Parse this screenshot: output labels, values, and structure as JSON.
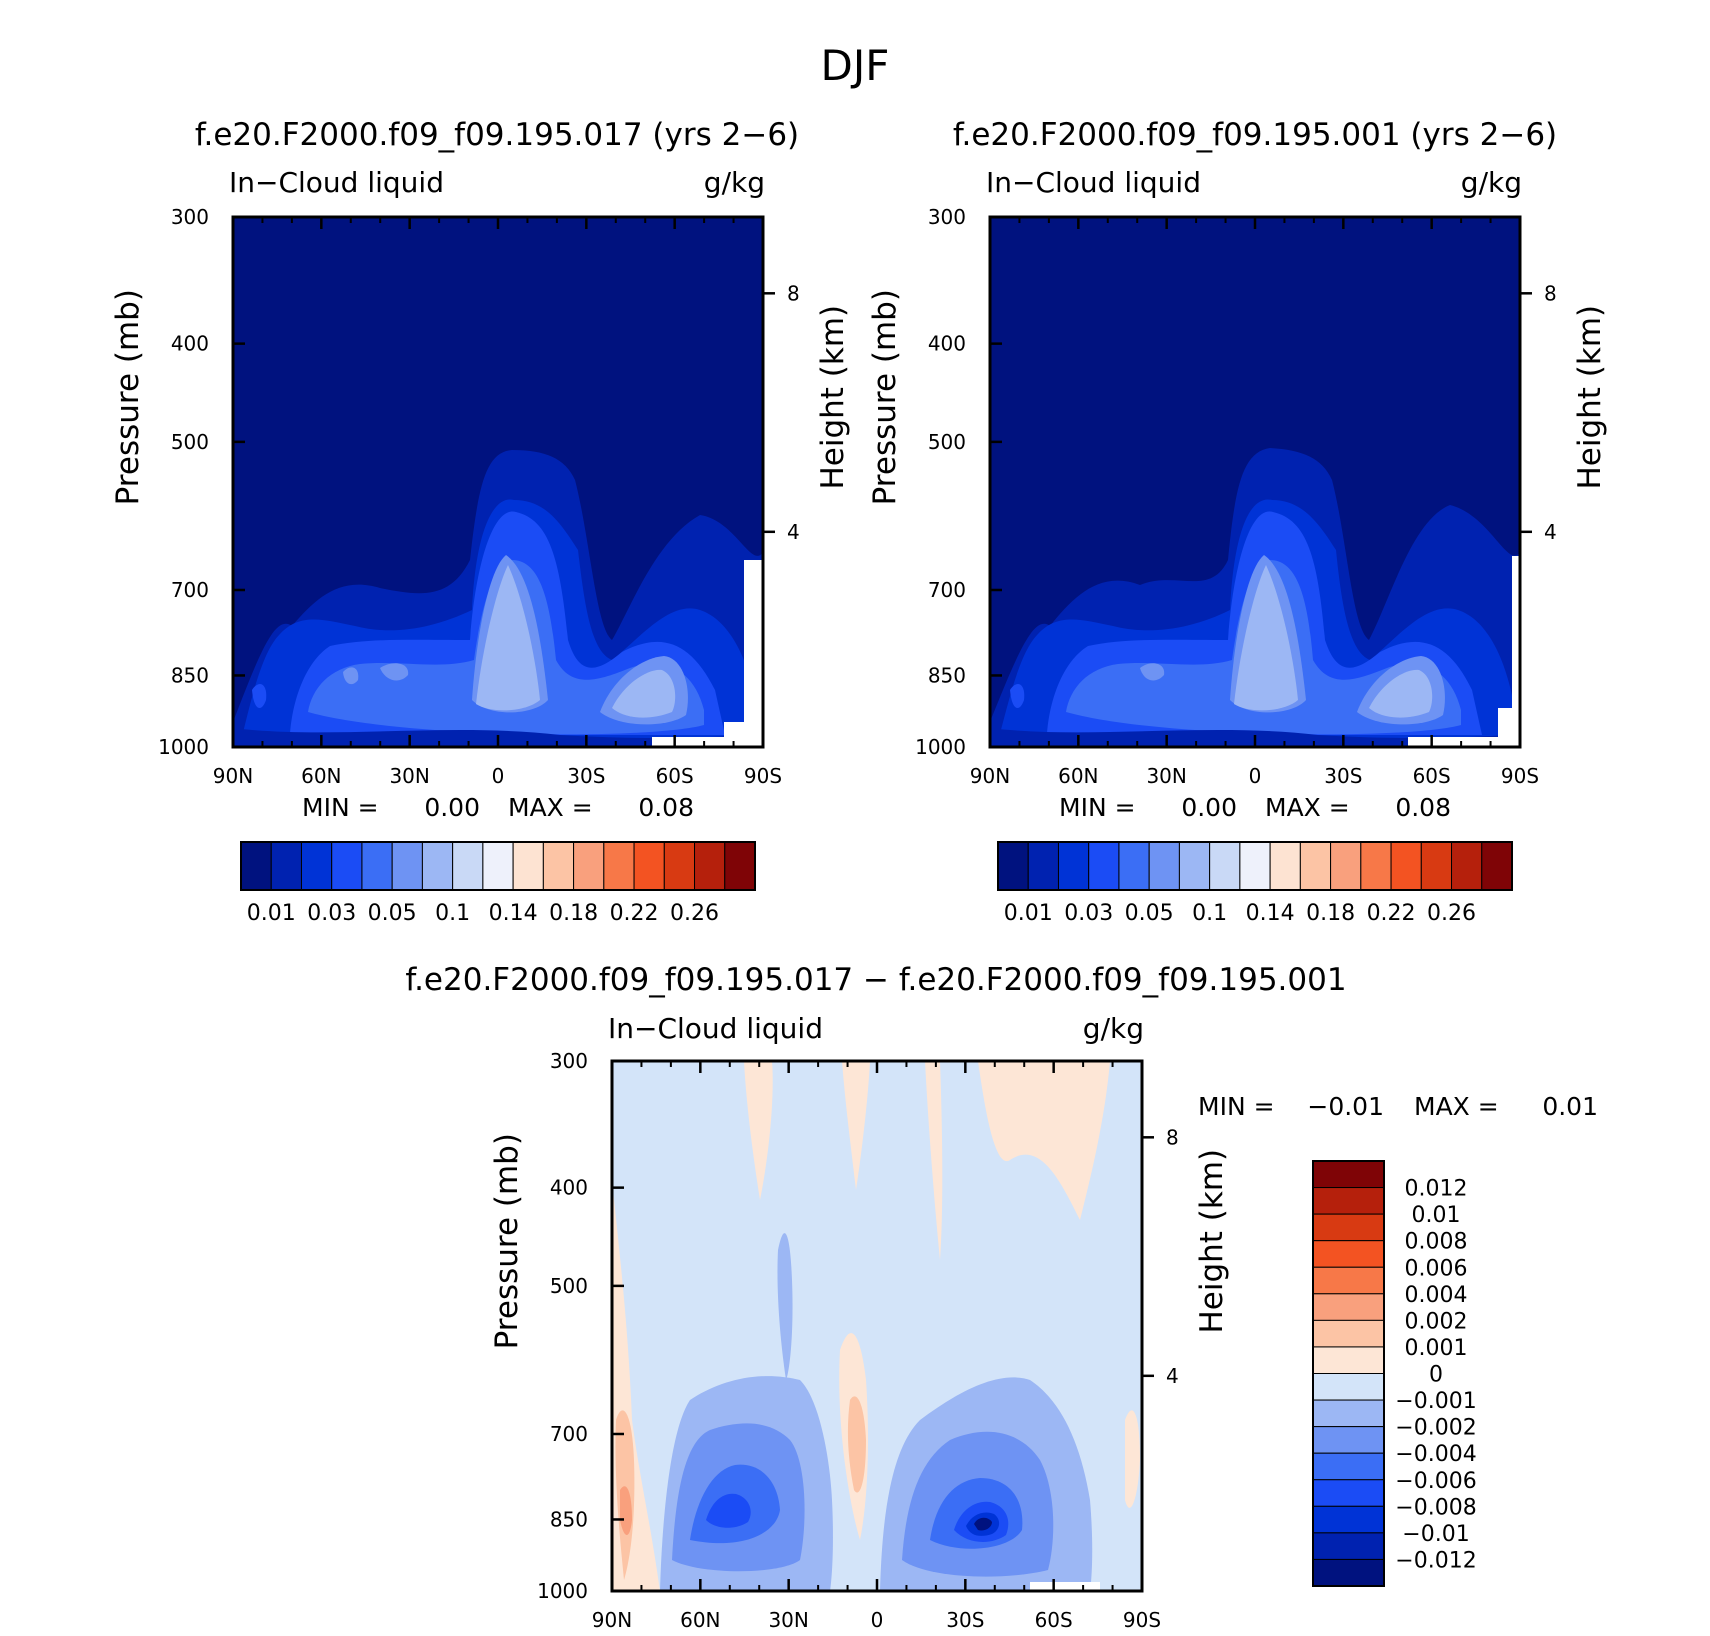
{
  "page_title": "DJF",
  "colors": {
    "seq": [
      "#00127f",
      "#0022b0",
      "#0033d6",
      "#1b4cf5",
      "#3b6ef5",
      "#6e93f3",
      "#9cb7f4",
      "#c9d9f6",
      "#eef1fb",
      "#fde3d2",
      "#fcc4a5",
      "#f9a07d",
      "#f77848",
      "#f35322",
      "#d83a12",
      "#b5200c",
      "#7f0406"
    ],
    "diff": [
      "#00127f",
      "#0022b0",
      "#0033d6",
      "#1b4cf5",
      "#3b6ef5",
      "#6e93f3",
      "#9cb7f4",
      "#d3e4f9",
      "#fde6d6",
      "#fcc4a5",
      "#f9a07d",
      "#f77848",
      "#f35322",
      "#d83a12",
      "#b5200c",
      "#7f0406"
    ]
  },
  "chart_data": [
    {
      "type": "contour",
      "title": "f.e20.F2000.f09_f09.195.017 (yrs 2−6)",
      "left_label": "In−Cloud liquid",
      "right_label": "g/kg",
      "ylabel": "Pressure (mb)",
      "y2label": "Height (km)",
      "x_ticks": [
        "90N",
        "60N",
        "30N",
        "0",
        "30S",
        "60S",
        "90S"
      ],
      "y_ticks": [
        "300",
        "400",
        "500",
        "700",
        "850",
        "1000"
      ],
      "y2_ticks": [
        "8",
        "4"
      ],
      "ylim": [
        1000,
        300
      ],
      "y_scale": "log",
      "stats": {
        "min_label": "MIN =",
        "min": "0.00",
        "max_label": "MAX =",
        "max": "0.08"
      },
      "colorbar": {
        "orientation": "horizontal",
        "labels": [
          "0.01",
          "0.03",
          "0.05",
          "0.1",
          "0.14",
          "0.18",
          "0.22",
          "0.26"
        ]
      }
    },
    {
      "type": "contour",
      "title": "f.e20.F2000.f09_f09.195.001 (yrs 2−6)",
      "left_label": "In−Cloud liquid",
      "right_label": "g/kg",
      "ylabel": "Pressure (mb)",
      "y2label": "Height (km)",
      "x_ticks": [
        "90N",
        "60N",
        "30N",
        "0",
        "30S",
        "60S",
        "90S"
      ],
      "y_ticks": [
        "300",
        "400",
        "500",
        "700",
        "850",
        "1000"
      ],
      "y2_ticks": [
        "8",
        "4"
      ],
      "ylim": [
        1000,
        300
      ],
      "y_scale": "log",
      "stats": {
        "min_label": "MIN =",
        "min": "0.00",
        "max_label": "MAX =",
        "max": "0.08"
      },
      "colorbar": {
        "orientation": "horizontal",
        "labels": [
          "0.01",
          "0.03",
          "0.05",
          "0.1",
          "0.14",
          "0.18",
          "0.22",
          "0.26"
        ]
      }
    },
    {
      "type": "contour",
      "title": "f.e20.F2000.f09_f09.195.017 − f.e20.F2000.f09_f09.195.001",
      "left_label": "In−Cloud liquid",
      "right_label": "g/kg",
      "ylabel": "Pressure (mb)",
      "y2label": "Height (km)",
      "x_ticks": [
        "90N",
        "60N",
        "30N",
        "0",
        "30S",
        "60S",
        "90S"
      ],
      "y_ticks": [
        "300",
        "400",
        "500",
        "700",
        "850",
        "1000"
      ],
      "y2_ticks": [
        "8",
        "4"
      ],
      "ylim": [
        1000,
        300
      ],
      "y_scale": "log",
      "stats": {
        "min_label": "MIN =",
        "min": "−0.01",
        "max_label": "MAX =",
        "max": "0.01"
      },
      "colorbar": {
        "orientation": "vertical",
        "labels": [
          "0.012",
          "0.01",
          "0.008",
          "0.006",
          "0.004",
          "0.002",
          "0.001",
          "0",
          "−0.001",
          "−0.002",
          "−0.004",
          "−0.006",
          "−0.008",
          "−0.01",
          "−0.012"
        ]
      }
    }
  ]
}
